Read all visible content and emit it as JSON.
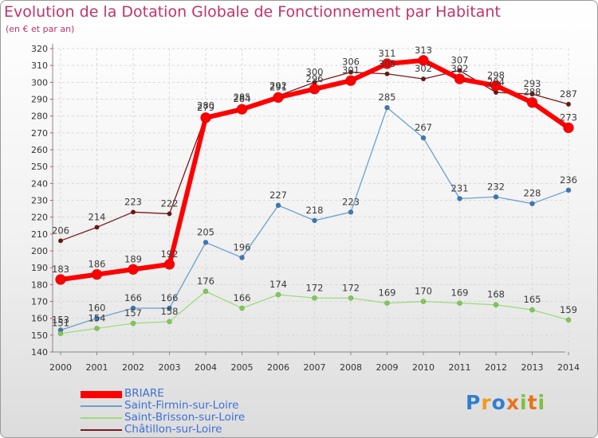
{
  "title": "Evolution de la Dotation Globale de Fonctionnement par Habitant",
  "subtitle": "(en € et par an)",
  "logo": {
    "text": "Proxiti",
    "letters": [
      "P",
      "r",
      "o",
      "x",
      "i",
      "t",
      "i"
    ]
  },
  "colors": {
    "title": "#c2336b",
    "legend_text": "#3d6fd6",
    "axis": "#888888",
    "tick_mark": "#d04070",
    "grid": "#d8d8d8"
  },
  "chart_data": {
    "type": "line",
    "title": "Evolution de la Dotation Globale de Fonctionnement par Habitant",
    "ylabel": "(en € et par an)",
    "xlabel": "",
    "categories": [
      "2000",
      "2001",
      "2002",
      "2003",
      "2004",
      "2005",
      "2006",
      "2007",
      "2008",
      "2009",
      "2010",
      "2011",
      "2012",
      "2013",
      "2014"
    ],
    "ylim": [
      140,
      320
    ],
    "yticks": [
      140,
      150,
      160,
      170,
      180,
      190,
      200,
      210,
      220,
      230,
      240,
      250,
      260,
      270,
      280,
      290,
      300,
      310,
      320
    ],
    "grid": true,
    "legend_position": "bottom-left",
    "series": [
      {
        "name": "Châtillon-sur-Loire",
        "color": "#7a1a1a",
        "dot": "#6e1414",
        "width": 1.3,
        "marker": 2.8,
        "values": [
          206,
          214,
          223,
          222,
          280,
          285,
          292,
          300,
          306,
          305,
          302,
          307,
          294,
          293,
          287
        ]
      },
      {
        "name": "Saint-Firmin-sur-Loire",
        "color": "#6aa0cf",
        "dot": "#3a78b8",
        "width": 1.3,
        "marker": 3,
        "values": [
          153,
          160,
          166,
          166,
          205,
          196,
          227,
          218,
          223,
          285,
          267,
          231,
          232,
          228,
          236
        ]
      },
      {
        "name": "Saint-Brisson-sur-Loire",
        "color": "#9cdc7a",
        "dot": "#7ccc50",
        "width": 1.3,
        "marker": 3,
        "values": [
          151,
          154,
          157,
          158,
          176,
          166,
          174,
          172,
          172,
          169,
          170,
          169,
          168,
          165,
          159
        ]
      },
      {
        "name": "BRIARE",
        "color": "#ff0000",
        "dot": "#ff0000",
        "width": 6,
        "marker": 6.5,
        "values": [
          183,
          186,
          189,
          192,
          279,
          284,
          291,
          296,
          301,
          311,
          313,
          302,
          298,
          288,
          273
        ]
      }
    ],
    "legend": [
      "BRIARE",
      "Saint-Firmin-sur-Loire",
      "Saint-Brisson-sur-Loire",
      "Châtillon-sur-Loire"
    ]
  }
}
